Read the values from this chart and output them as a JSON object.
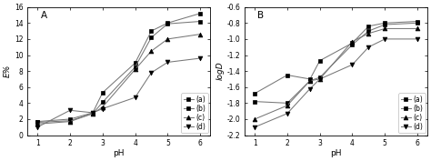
{
  "panel_A": {
    "title": "A",
    "xlabel": "pH",
    "ylabel": "E%",
    "xlim": [
      0.7,
      6.3
    ],
    "ylim": [
      0,
      16
    ],
    "yticks": [
      0,
      2,
      4,
      6,
      8,
      10,
      12,
      14,
      16
    ],
    "xticks": [
      1,
      2,
      3,
      4,
      5,
      6
    ],
    "series": [
      {
        "x": [
          1,
          2,
          2.7,
          3,
          4,
          4.5,
          5,
          6
        ],
        "y": [
          1.7,
          2.0,
          2.8,
          5.3,
          9.0,
          13.0,
          14.0,
          15.2
        ],
        "marker": "s",
        "label": "(a)"
      },
      {
        "x": [
          1,
          2,
          2.7,
          3,
          4,
          4.5,
          5,
          6
        ],
        "y": [
          1.6,
          1.8,
          2.7,
          4.1,
          8.5,
          12.2,
          13.9,
          14.2
        ],
        "marker": "s",
        "label": "(b)"
      },
      {
        "x": [
          1,
          2,
          2.7,
          3,
          4,
          4.5,
          5,
          6
        ],
        "y": [
          1.4,
          1.7,
          2.7,
          3.5,
          8.2,
          10.5,
          12.0,
          12.6
        ],
        "marker": "^",
        "label": "(c)"
      },
      {
        "x": [
          1,
          2,
          2.7,
          3,
          4,
          4.5,
          5,
          6
        ],
        "y": [
          1.0,
          3.1,
          2.8,
          3.3,
          4.7,
          7.8,
          9.1,
          9.6
        ],
        "marker": "v",
        "label": "(d)"
      }
    ]
  },
  "panel_B": {
    "title": "B",
    "xlabel": "pH",
    "ylabel": "logD",
    "xlim": [
      0.7,
      6.3
    ],
    "ylim": [
      -2.2,
      -0.6
    ],
    "yticks": [
      -2.2,
      -2.0,
      -1.8,
      -1.6,
      -1.4,
      -1.2,
      -1.0,
      -0.8,
      -0.6
    ],
    "ytick_labels": [
      "-2.2",
      "-2.0",
      "-1.8",
      "-1.6",
      "-1.4",
      "-1.2",
      "-1.0",
      "-0.8",
      "-0.6"
    ],
    "xticks": [
      1,
      2,
      3,
      4,
      5,
      6
    ],
    "series": [
      {
        "x": [
          1,
          2,
          2.7,
          3,
          4,
          4.5,
          5,
          6
        ],
        "y": [
          -1.68,
          -1.45,
          -1.5,
          -1.27,
          -1.05,
          -0.84,
          -0.8,
          -0.78
        ],
        "marker": "s",
        "label": "(a)"
      },
      {
        "x": [
          1,
          2,
          2.7,
          3,
          4,
          4.5,
          5,
          6
        ],
        "y": [
          -1.78,
          -1.8,
          -1.52,
          -1.48,
          -1.07,
          -0.9,
          -0.82,
          -0.8
        ],
        "marker": "s",
        "label": "(b)"
      },
      {
        "x": [
          1,
          2,
          2.7,
          3,
          4,
          4.5,
          5,
          6
        ],
        "y": [
          -2.0,
          -1.83,
          -1.52,
          -1.5,
          -1.03,
          -0.93,
          -0.87,
          -0.87
        ],
        "marker": "^",
        "label": "(c)"
      },
      {
        "x": [
          1,
          2,
          2.7,
          3,
          4,
          4.5,
          5,
          6
        ],
        "y": [
          -2.1,
          -1.93,
          -1.62,
          -1.5,
          -1.32,
          -1.1,
          -1.0,
          -1.0
        ],
        "marker": "v",
        "label": "(d)"
      }
    ]
  },
  "line_color": "#777777",
  "marker_size": 3.5,
  "marker_color": "black",
  "legend_fontsize": 5.5,
  "axis_fontsize": 6.5,
  "tick_fontsize": 5.5,
  "title_fontsize": 7.5,
  "linewidth": 0.75
}
